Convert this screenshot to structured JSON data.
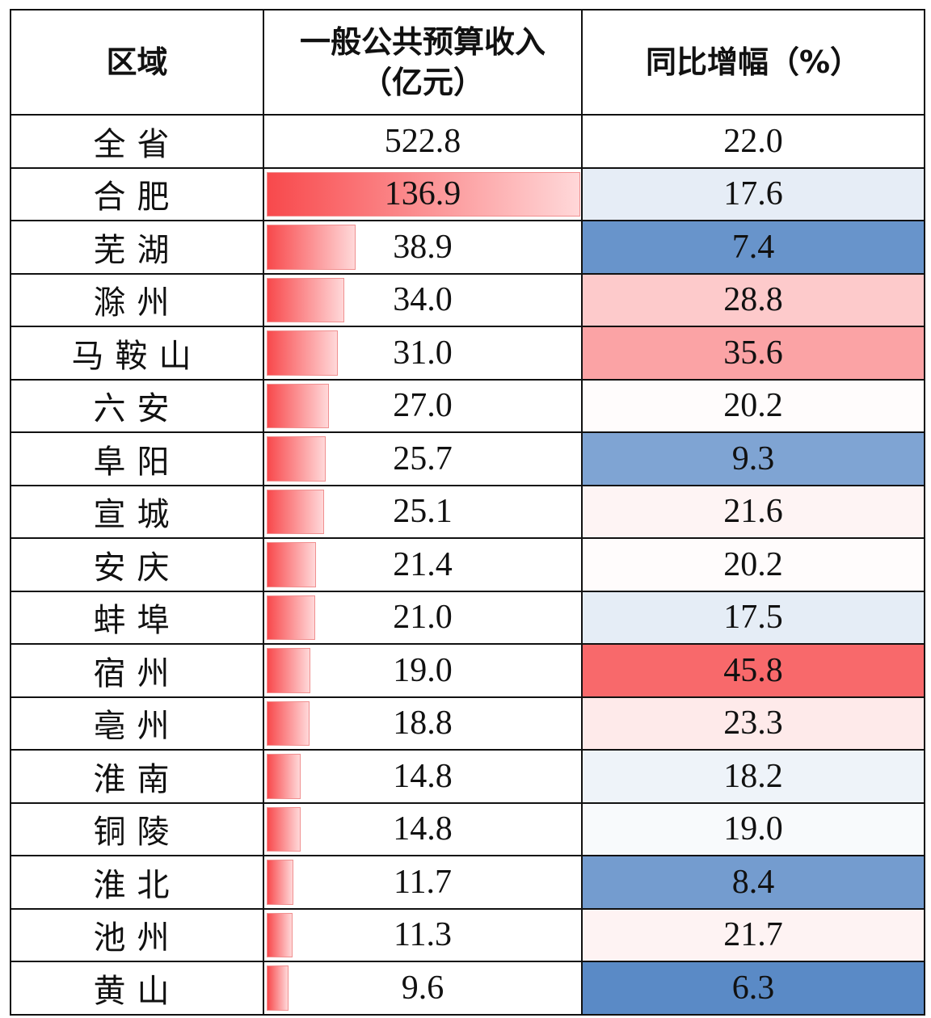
{
  "header": {
    "region": "区域",
    "revenue": "一般公共预算收入（亿元）",
    "growth": "同比增幅（%）"
  },
  "colors": {
    "bar_start": "#f8494c",
    "bar_end": "#ffd8d9",
    "scale_min": "#5a8ac6",
    "scale_mid": "#ffffff",
    "scale_max": "#f8696b"
  },
  "rows": [
    {
      "region": "全省",
      "revenue": "522.8",
      "growth": "22.0",
      "total": true
    },
    {
      "region": "合肥",
      "revenue": "136.9",
      "growth": "17.6"
    },
    {
      "region": "芜湖",
      "revenue": "38.9",
      "growth": "7.4"
    },
    {
      "region": "滁州",
      "revenue": "34.0",
      "growth": "28.8"
    },
    {
      "region": "马鞍山",
      "revenue": "31.0",
      "growth": "35.6"
    },
    {
      "region": "六安",
      "revenue": "27.0",
      "growth": "20.2"
    },
    {
      "region": "阜阳",
      "revenue": "25.7",
      "growth": "9.3"
    },
    {
      "region": "宣城",
      "revenue": "25.1",
      "growth": "21.6"
    },
    {
      "region": "安庆",
      "revenue": "21.4",
      "growth": "20.2"
    },
    {
      "region": "蚌埠",
      "revenue": "21.0",
      "growth": "17.5"
    },
    {
      "region": "宿州",
      "revenue": "19.0",
      "growth": "45.8"
    },
    {
      "region": "亳州",
      "revenue": "18.8",
      "growth": "23.3"
    },
    {
      "region": "淮南",
      "revenue": "14.8",
      "growth": "18.2"
    },
    {
      "region": "铜陵",
      "revenue": "14.8",
      "growth": "19.0"
    },
    {
      "region": "淮北",
      "revenue": "11.7",
      "growth": "8.4"
    },
    {
      "region": "池州",
      "revenue": "11.3",
      "growth": "21.7"
    },
    {
      "region": "黄山",
      "revenue": "9.6",
      "growth": "6.3"
    }
  ],
  "chart_data": {
    "type": "table",
    "columns": [
      "区域",
      "一般公共预算收入（亿元）",
      "同比增幅（%）"
    ],
    "categories": [
      "全省",
      "合肥",
      "芜湖",
      "滁州",
      "马鞍山",
      "六安",
      "阜阳",
      "宣城",
      "安庆",
      "蚌埠",
      "宿州",
      "亳州",
      "淮南",
      "铜陵",
      "淮北",
      "池州",
      "黄山"
    ],
    "series": [
      {
        "name": "一般公共预算收入（亿元）",
        "values": [
          522.8,
          136.9,
          38.9,
          34.0,
          31.0,
          27.0,
          25.7,
          25.1,
          21.4,
          21.0,
          19.0,
          18.8,
          14.8,
          14.8,
          11.7,
          11.3,
          9.6
        ],
        "encoding": "data-bar (excluding 全省)"
      },
      {
        "name": "同比增幅（%）",
        "values": [
          22.0,
          17.6,
          7.4,
          28.8,
          35.6,
          20.2,
          9.3,
          21.6,
          20.2,
          17.5,
          45.8,
          23.3,
          18.2,
          19.0,
          8.4,
          21.7,
          6.3
        ],
        "encoding": "3-color scale blue-white-red"
      }
    ]
  }
}
